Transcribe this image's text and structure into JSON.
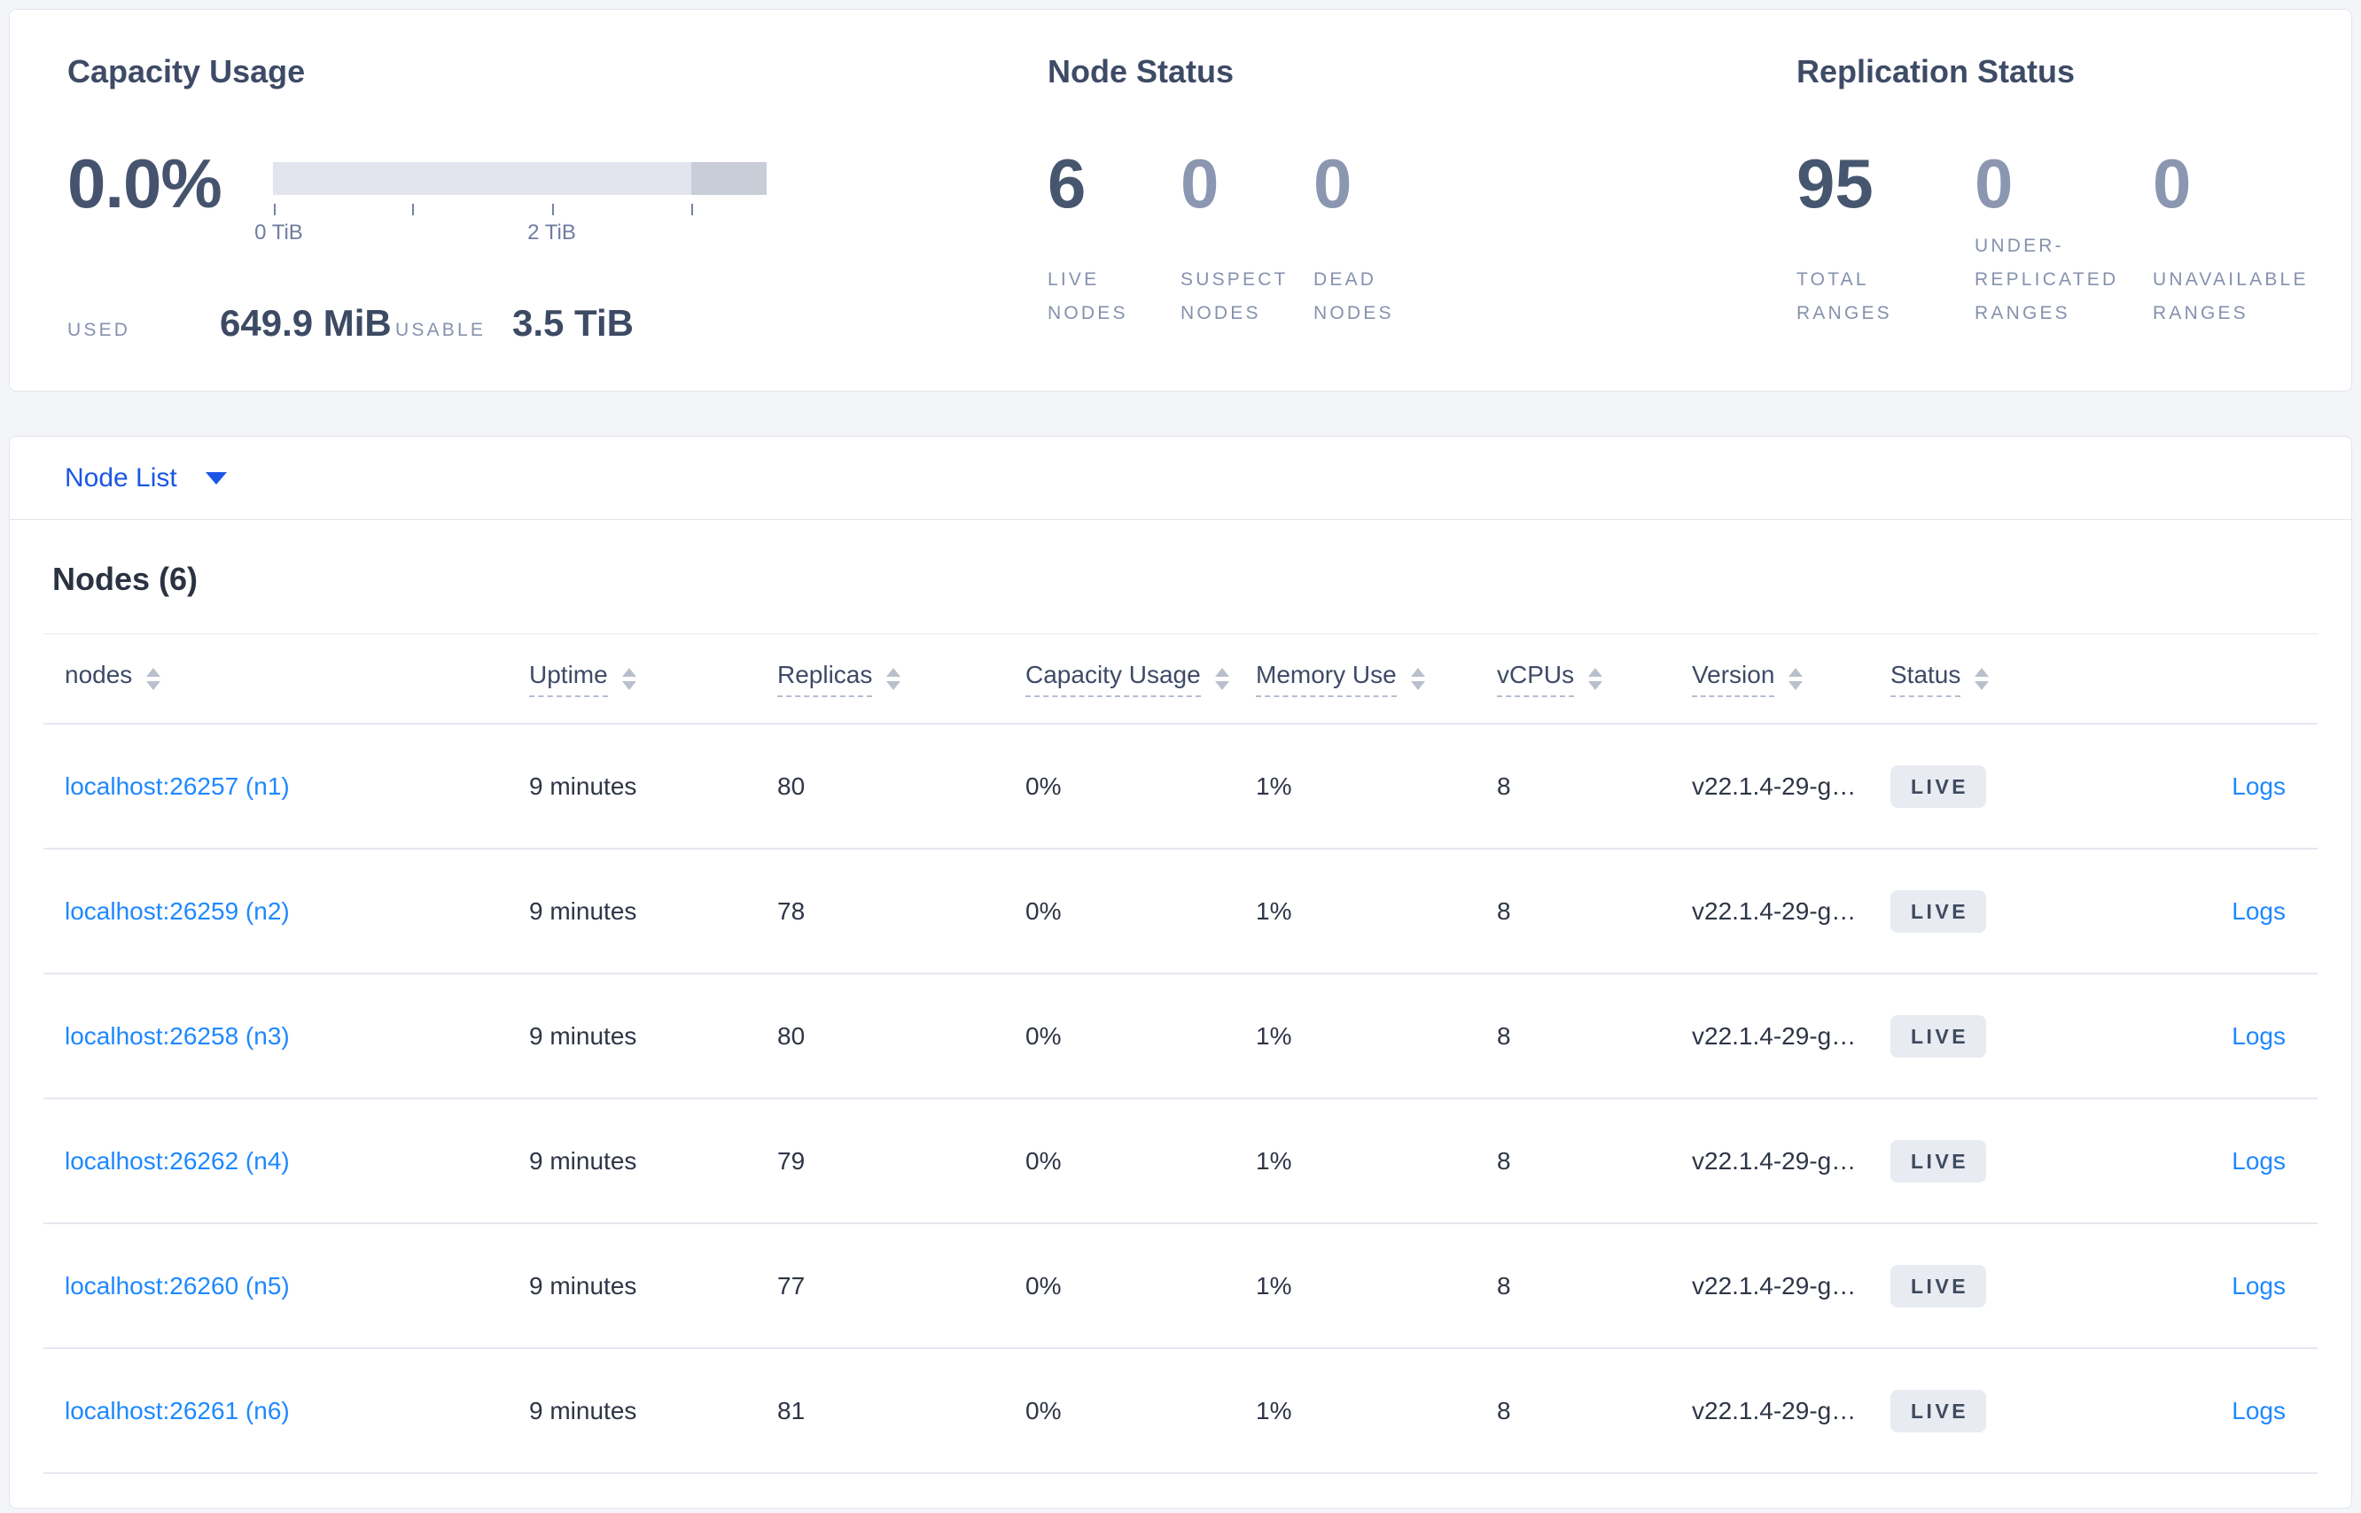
{
  "summary": {
    "capacity": {
      "title": "Capacity Usage",
      "percent": "0.0%",
      "axis": [
        {
          "label": "0 TiB"
        },
        {
          "label": "2 TiB"
        }
      ],
      "used_label": "USED",
      "used_value": "649.9 MiB",
      "usable_label": "USABLE",
      "usable_value": "3.5 TiB"
    },
    "node_status": {
      "title": "Node Status",
      "metrics": [
        {
          "value": "6",
          "label": "LIVE\nNODES"
        },
        {
          "value": "0",
          "label": "SUSPECT\nNODES"
        },
        {
          "value": "0",
          "label": "DEAD\nNODES"
        }
      ]
    },
    "replication": {
      "title": "Replication Status",
      "metrics": [
        {
          "value": "95",
          "label": "TOTAL\nRANGES"
        },
        {
          "value": "0",
          "label": "UNDER-\nREPLICATED\nRANGES"
        },
        {
          "value": "0",
          "label": "UNAVAILABLE\nRANGES"
        }
      ]
    }
  },
  "view_selector": {
    "label": "Node List"
  },
  "table": {
    "heading": "Nodes (6)",
    "columns": [
      {
        "label": "nodes"
      },
      {
        "label": "Uptime"
      },
      {
        "label": "Replicas"
      },
      {
        "label": "Capacity Usage"
      },
      {
        "label": "Memory Use"
      },
      {
        "label": "vCPUs"
      },
      {
        "label": "Version"
      },
      {
        "label": "Status"
      }
    ],
    "rows": [
      {
        "node": "localhost:26257 (n1)",
        "uptime": "9 minutes",
        "replicas": "80",
        "capacity": "0%",
        "memory": "1%",
        "vcpus": "8",
        "version": "v22.1.4-29-g…",
        "status": "LIVE",
        "logs": "Logs"
      },
      {
        "node": "localhost:26259 (n2)",
        "uptime": "9 minutes",
        "replicas": "78",
        "capacity": "0%",
        "memory": "1%",
        "vcpus": "8",
        "version": "v22.1.4-29-g…",
        "status": "LIVE",
        "logs": "Logs"
      },
      {
        "node": "localhost:26258 (n3)",
        "uptime": "9 minutes",
        "replicas": "80",
        "capacity": "0%",
        "memory": "1%",
        "vcpus": "8",
        "version": "v22.1.4-29-g…",
        "status": "LIVE",
        "logs": "Logs"
      },
      {
        "node": "localhost:26262 (n4)",
        "uptime": "9 minutes",
        "replicas": "79",
        "capacity": "0%",
        "memory": "1%",
        "vcpus": "8",
        "version": "v22.1.4-29-g…",
        "status": "LIVE",
        "logs": "Logs"
      },
      {
        "node": "localhost:26260 (n5)",
        "uptime": "9 minutes",
        "replicas": "77",
        "capacity": "0%",
        "memory": "1%",
        "vcpus": "8",
        "version": "v22.1.4-29-g…",
        "status": "LIVE",
        "logs": "Logs"
      },
      {
        "node": "localhost:26261 (n6)",
        "uptime": "9 minutes",
        "replicas": "81",
        "capacity": "0%",
        "memory": "1%",
        "vcpus": "8",
        "version": "v22.1.4-29-g…",
        "status": "LIVE",
        "logs": "Logs"
      }
    ]
  },
  "colors": {
    "accent_blue": "#1b57e5",
    "link_blue": "#1e88ff",
    "metric_primary": "#47566f",
    "metric_secondary": "#8b96b1",
    "bar_light": "#e3e5ee",
    "bar_dark": "#c9cdd8",
    "badge_bg": "#e8ebf1"
  }
}
